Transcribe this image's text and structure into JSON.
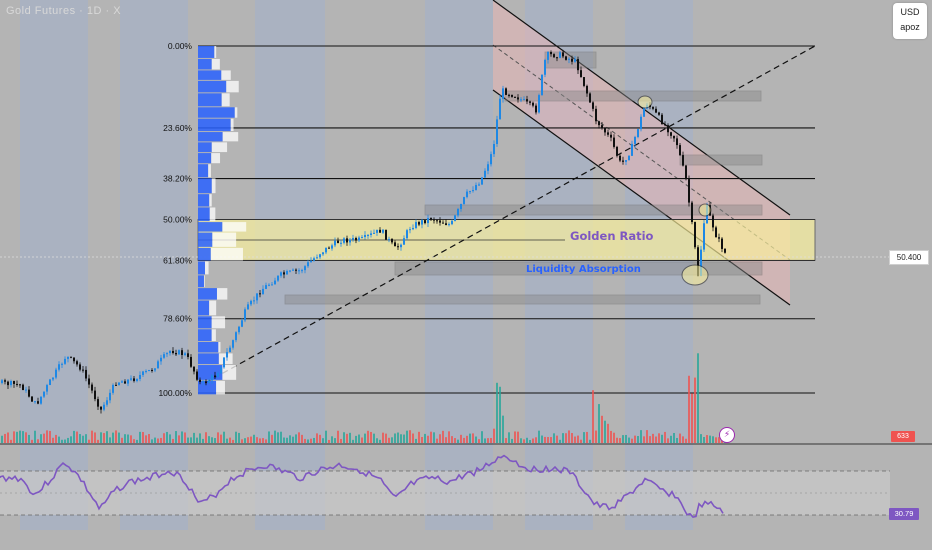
{
  "header": {
    "ticker": "Gold Futures · 1D · X"
  },
  "currency_box": {
    "currency": "USD",
    "user": "apoz"
  },
  "last_price": "50.400",
  "volume_last": "633",
  "rsi_last": "30.79",
  "colors": {
    "background": "#b4b4b4",
    "alt_band": "#a7b2c6",
    "golden_zone": "#fff59d",
    "golden_text": "#7e57c2",
    "liquidity_text": "#2962ff",
    "channel_fill": "#e8b6b6",
    "rsi_line": "#7e57c2",
    "candle_up": "#26a69a",
    "candle_down": "#ef5350",
    "vp_up": "#2962ff",
    "vp_down": "#ffffff"
  },
  "chart_data": {
    "type": "candlestick",
    "fibonacci_levels": [
      {
        "label": "0.00%",
        "level": 0.0
      },
      {
        "label": "23.60%",
        "level": 0.236
      },
      {
        "label": "38.20%",
        "level": 0.382
      },
      {
        "label": "50.00%",
        "level": 0.5
      },
      {
        "label": "61.80%",
        "level": 0.618
      },
      {
        "label": "78.60%",
        "level": 0.786
      },
      {
        "label": "100.00%",
        "level": 1.0
      }
    ],
    "annotations": [
      "Golden Ratio",
      "Liquidity Absorption"
    ],
    "last_price": 50.4,
    "volume_last": 633,
    "rsi_last": 30.79
  }
}
